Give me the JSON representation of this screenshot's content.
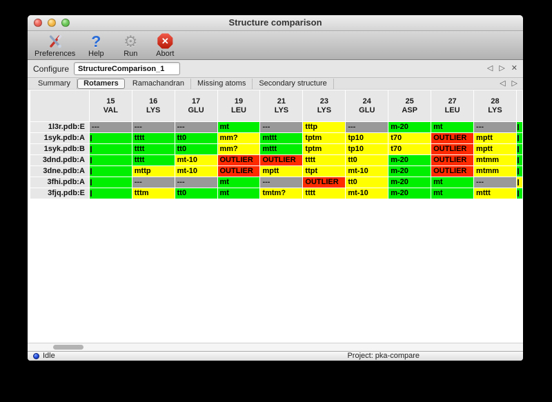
{
  "window": {
    "title": "Structure comparison"
  },
  "toolbar": {
    "items": [
      {
        "label": "Preferences",
        "icon": "tools-icon"
      },
      {
        "label": "Help",
        "icon": "question-icon"
      },
      {
        "label": "Run",
        "icon": "gear-icon"
      },
      {
        "label": "Abort",
        "icon": "abort-icon"
      }
    ],
    "abort_glyph": "✕",
    "help_glyph": "?",
    "gear_glyph": "⚙"
  },
  "configure": {
    "label": "Configure",
    "value": "StructureComparison_1"
  },
  "config_nav": {
    "prev": "◁",
    "next": "▷",
    "close": "✕"
  },
  "tabs": {
    "items": [
      "Summary",
      "Rotamers",
      "Ramachandran",
      "Missing atoms",
      "Secondary structure"
    ],
    "selected": "Rotamers",
    "prev": "◁",
    "next": "▷"
  },
  "colors": {
    "green": "#00ee00",
    "yellow": "#ffff00",
    "red": "#ff2b00",
    "gray": "#999999"
  },
  "table": {
    "columns": [
      {
        "num": "15",
        "res": "VAL"
      },
      {
        "num": "16",
        "res": "LYS"
      },
      {
        "num": "17",
        "res": "GLU"
      },
      {
        "num": "19",
        "res": "LEU"
      },
      {
        "num": "21",
        "res": "LYS"
      },
      {
        "num": "23",
        "res": "LYS"
      },
      {
        "num": "24",
        "res": "GLU"
      },
      {
        "num": "25",
        "res": "ASP"
      },
      {
        "num": "27",
        "res": "LEU"
      },
      {
        "num": "28",
        "res": "LYS"
      }
    ],
    "rows": [
      {
        "name": "1l3r.pdb:E",
        "cells": [
          {
            "t": "---",
            "c": "gray"
          },
          {
            "t": "---",
            "c": "gray"
          },
          {
            "t": "---",
            "c": "gray"
          },
          {
            "t": "mt",
            "c": "green"
          },
          {
            "t": "---",
            "c": "gray"
          },
          {
            "t": "tttp",
            "c": "yellow"
          },
          {
            "t": "---",
            "c": "gray"
          },
          {
            "t": "m-20",
            "c": "green"
          },
          {
            "t": "mt",
            "c": "green"
          },
          {
            "t": "---",
            "c": "gray"
          }
        ]
      },
      {
        "name": "1syk.pdb:A",
        "cells": [
          {
            "t": "",
            "c": "green",
            "clip": true
          },
          {
            "t": "tttt",
            "c": "green"
          },
          {
            "t": "tt0",
            "c": "green"
          },
          {
            "t": "mm?",
            "c": "yellow"
          },
          {
            "t": "mttt",
            "c": "green"
          },
          {
            "t": "tptm",
            "c": "yellow"
          },
          {
            "t": "tp10",
            "c": "yellow"
          },
          {
            "t": "t70",
            "c": "yellow"
          },
          {
            "t": "OUTLIER",
            "c": "red"
          },
          {
            "t": "mptt",
            "c": "yellow"
          }
        ]
      },
      {
        "name": "1syk.pdb:B",
        "cells": [
          {
            "t": "",
            "c": "green",
            "clip": true
          },
          {
            "t": "tttt",
            "c": "green"
          },
          {
            "t": "tt0",
            "c": "green"
          },
          {
            "t": "mm?",
            "c": "yellow"
          },
          {
            "t": "mttt",
            "c": "green"
          },
          {
            "t": "tptm",
            "c": "yellow"
          },
          {
            "t": "tp10",
            "c": "yellow"
          },
          {
            "t": "t70",
            "c": "yellow"
          },
          {
            "t": "OUTLIER",
            "c": "red"
          },
          {
            "t": "mptt",
            "c": "yellow"
          }
        ]
      },
      {
        "name": "3dnd.pdb:A",
        "cells": [
          {
            "t": "",
            "c": "green",
            "clip": true
          },
          {
            "t": "tttt",
            "c": "green"
          },
          {
            "t": "mt-10",
            "c": "yellow"
          },
          {
            "t": "OUTLIER",
            "c": "red"
          },
          {
            "t": "OUTLIER",
            "c": "red"
          },
          {
            "t": "tttt",
            "c": "yellow"
          },
          {
            "t": "tt0",
            "c": "yellow"
          },
          {
            "t": "m-20",
            "c": "green"
          },
          {
            "t": "OUTLIER",
            "c": "red"
          },
          {
            "t": "mtmm",
            "c": "yellow"
          }
        ]
      },
      {
        "name": "3dne.pdb:A",
        "cells": [
          {
            "t": "",
            "c": "green",
            "clip": true
          },
          {
            "t": "mttp",
            "c": "yellow"
          },
          {
            "t": "mt-10",
            "c": "yellow"
          },
          {
            "t": "OUTLIER",
            "c": "red"
          },
          {
            "t": "mptt",
            "c": "yellow"
          },
          {
            "t": "ttpt",
            "c": "yellow"
          },
          {
            "t": "mt-10",
            "c": "yellow"
          },
          {
            "t": "m-20",
            "c": "green"
          },
          {
            "t": "OUTLIER",
            "c": "red"
          },
          {
            "t": "mtmm",
            "c": "yellow"
          }
        ]
      },
      {
        "name": "3fhi.pdb:A",
        "cells": [
          {
            "t": "",
            "c": "green",
            "clip": true
          },
          {
            "t": "---",
            "c": "gray"
          },
          {
            "t": "---",
            "c": "gray"
          },
          {
            "t": "mt",
            "c": "green"
          },
          {
            "t": "---",
            "c": "gray"
          },
          {
            "t": "OUTLIER",
            "c": "red"
          },
          {
            "t": "tt0",
            "c": "yellow"
          },
          {
            "t": "m-20",
            "c": "green"
          },
          {
            "t": "mt",
            "c": "green"
          },
          {
            "t": "---",
            "c": "gray"
          }
        ]
      },
      {
        "name": "3fjq.pdb:E",
        "cells": [
          {
            "t": "",
            "c": "green",
            "clip": true
          },
          {
            "t": "tttm",
            "c": "yellow"
          },
          {
            "t": "tt0",
            "c": "green"
          },
          {
            "t": "mt",
            "c": "green"
          },
          {
            "t": "tmtm?",
            "c": "yellow"
          },
          {
            "t": "tttt",
            "c": "yellow"
          },
          {
            "t": "mt-10",
            "c": "yellow"
          },
          {
            "t": "m-20",
            "c": "green"
          },
          {
            "t": "mt",
            "c": "green"
          },
          {
            "t": "mttt",
            "c": "yellow"
          }
        ]
      }
    ],
    "edge_column": {
      "colors": [
        "green",
        "green",
        "green",
        "green",
        "green",
        "yellow",
        "green"
      ]
    }
  },
  "status": {
    "state": "Idle",
    "project": "Project: pka-compare"
  }
}
